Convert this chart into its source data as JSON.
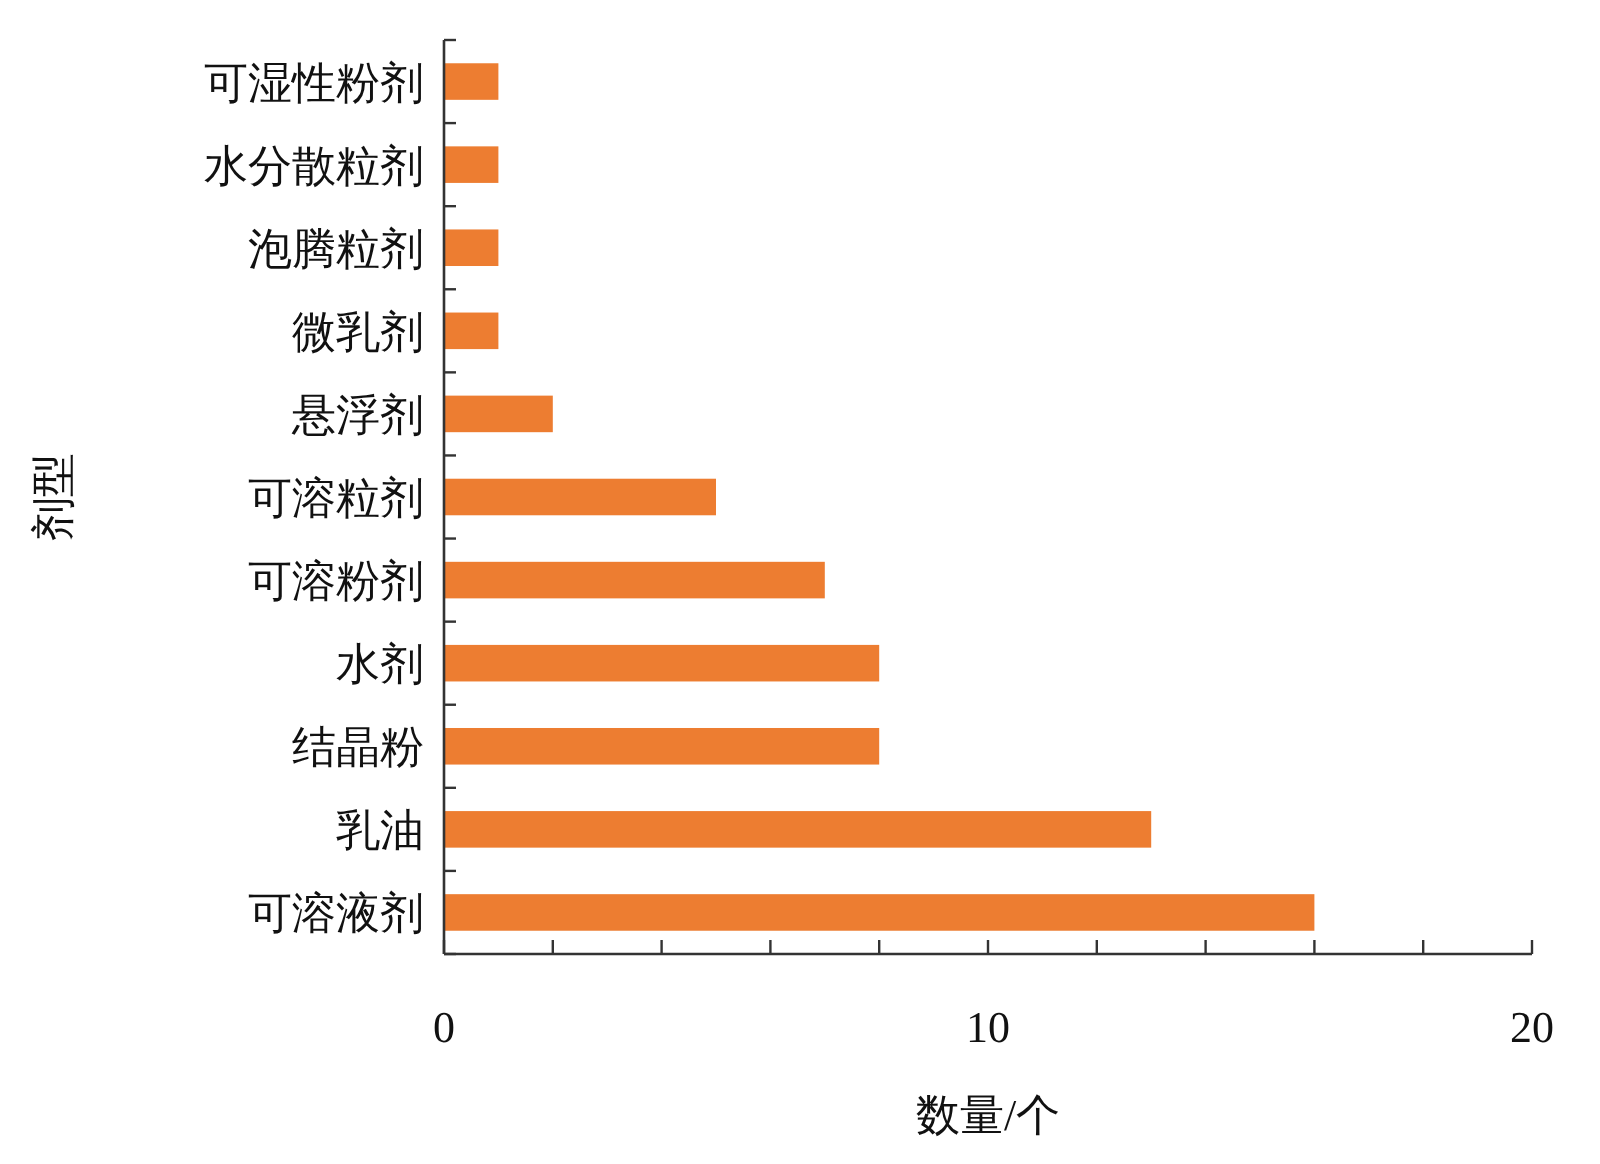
{
  "chart_data": {
    "type": "bar",
    "orientation": "horizontal",
    "xlabel": "数量/个",
    "ylabel": "剂型",
    "categories": [
      "可湿性粉剂",
      "水分散粒剂",
      "泡腾粒剂",
      "微乳剂",
      "悬浮剂",
      "可溶粒剂",
      "可溶粉剂",
      "水剂",
      "结晶粉",
      "乳油",
      "可溶液剂"
    ],
    "values": [
      1,
      1,
      1,
      1,
      2,
      5,
      7,
      8,
      8,
      13,
      16
    ],
    "color": "#ed7d31",
    "xlim": [
      0,
      20
    ],
    "xticks": [
      0,
      {
        "value": 2,
        "label": null
      },
      {
        "value": 4,
        "label": null
      },
      {
        "value": 6,
        "label": null
      },
      {
        "value": 8,
        "label": null
      },
      10,
      {
        "value": 12,
        "label": null
      },
      {
        "value": 14,
        "label": null
      },
      {
        "value": 16,
        "label": null
      },
      {
        "value": 18,
        "label": null
      },
      20
    ],
    "grid": false
  }
}
